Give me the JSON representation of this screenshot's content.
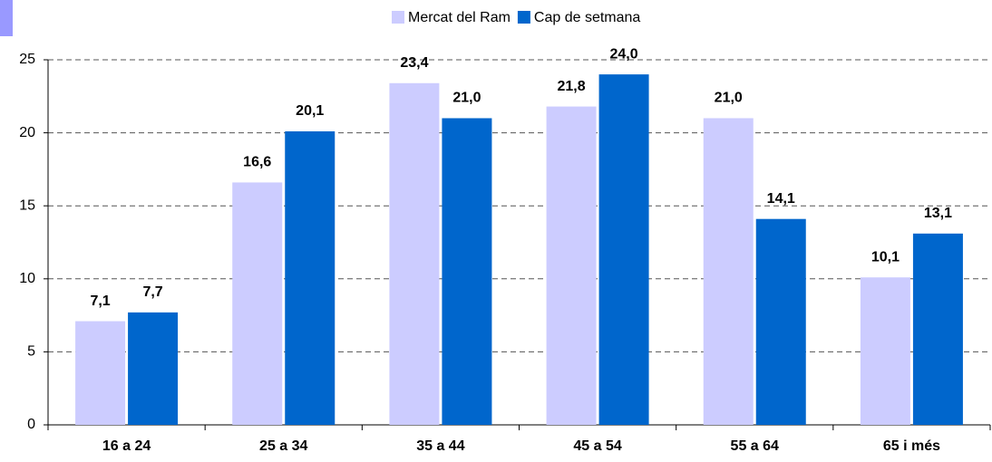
{
  "chart_data": {
    "type": "bar",
    "categories": [
      "16 a 24",
      "25 a 34",
      "35 a 44",
      "45 a 54",
      "55 a 64",
      "65 i més"
    ],
    "series": [
      {
        "name": "Mercat del Ram",
        "color": "#ccccff",
        "values": [
          7.1,
          16.6,
          23.4,
          21.8,
          21.0,
          10.1
        ],
        "value_labels": [
          "7,1",
          "16,6",
          "23,4",
          "21,8",
          "21,0",
          "10,1"
        ]
      },
      {
        "name": "Cap de setmana",
        "color": "#0066cc",
        "values": [
          7.7,
          20.1,
          21.0,
          24.0,
          14.1,
          13.1
        ],
        "value_labels": [
          "7,7",
          "20,1",
          "21,0",
          "24,0",
          "14,1",
          "13,1"
        ]
      }
    ],
    "ylim": [
      0,
      25
    ],
    "yticks": [
      0,
      5,
      10,
      15,
      20,
      25
    ],
    "grid": true,
    "legend": "top"
  }
}
